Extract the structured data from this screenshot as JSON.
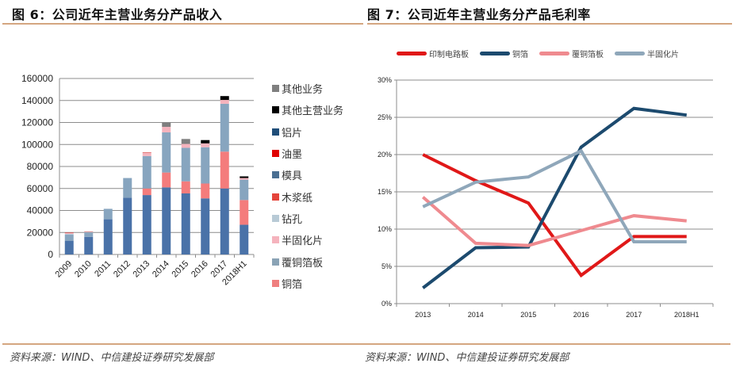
{
  "left": {
    "title": "图 6：公司近年主营业务分产品收入",
    "source": "资料来源：WIND、中信建投证券研究发展部"
  },
  "right": {
    "title": "图 7：公司近年主营业务分产品毛利率",
    "source": "资料来源：WIND、中信建投证券研究发展部"
  },
  "chart_data": [
    {
      "type": "bar",
      "stacked": true,
      "title": "公司近年主营业务分产品收入",
      "categories": [
        "2009",
        "2010",
        "2011",
        "2012",
        "2013",
        "2014",
        "2015",
        "2016",
        "2017",
        "2018H1"
      ],
      "ylim": [
        0,
        160000
      ],
      "yticks": [
        "0",
        "20000",
        "40000",
        "60000",
        "80000",
        "100000",
        "120000",
        "140000",
        "160000"
      ],
      "grid": true,
      "legend_position": "right",
      "legend": [
        "其他业务",
        "其他主营业务",
        "铝片",
        "油墨",
        "模具",
        "木浆纸",
        "钻孔",
        "半固化片",
        "覆铜箔板",
        "铜箔"
      ],
      "series": [
        {
          "name": "印制电路板",
          "color": "#4a72a8",
          "values": [
            12500,
            16000,
            32000,
            51500,
            54000,
            61000,
            55500,
            51000,
            60000,
            27000
          ]
        },
        {
          "name": "铜箔",
          "color": "#f47c7c",
          "values": [
            0,
            0,
            0,
            0,
            6000,
            13500,
            11000,
            13500,
            33500,
            22500
          ]
        },
        {
          "name": "覆铜箔板",
          "color": "#87a5bf",
          "values": [
            5500,
            4000,
            9500,
            18000,
            29500,
            36500,
            30500,
            33000,
            43500,
            18500
          ]
        },
        {
          "name": "钻孔",
          "color": "#b8cad6",
          "values": [
            700,
            500,
            0,
            0,
            0,
            0,
            0,
            0,
            0,
            0
          ]
        },
        {
          "name": "半固化片",
          "color": "#f5b3bd",
          "values": [
            800,
            300,
            0,
            0,
            3000,
            5000,
            3500,
            3500,
            3500,
            1500
          ]
        },
        {
          "name": "木浆纸",
          "color": "#d9534f",
          "values": [
            500,
            200,
            0,
            0,
            500,
            0,
            0,
            0,
            0,
            0
          ]
        },
        {
          "name": "其他主营业务",
          "color": "#000000",
          "values": [
            0,
            0,
            0,
            0,
            0,
            0,
            0,
            3000,
            3500,
            1500
          ]
        },
        {
          "name": "其他业务",
          "color": "#7f7f7f",
          "values": [
            0,
            0,
            0,
            0,
            0,
            4000,
            4500,
            0,
            0,
            0
          ]
        }
      ],
      "legend_colors": {
        "其他业务": "#7f7f7f",
        "其他主营业务": "#000000",
        "铝片": "#1f4e79",
        "油墨": "#e00000",
        "模具": "#4a6f92",
        "木浆纸": "#e4443b",
        "钻孔": "#b8cad6",
        "半固化片": "#f5b3bd",
        "覆铜箔板": "#8aa3b5",
        "铜箔": "#ef7f7f"
      }
    },
    {
      "type": "line",
      "title": "公司近年主营业务分产品毛利率",
      "categories": [
        "2013",
        "2014",
        "2015",
        "2016",
        "2017",
        "2018H1"
      ],
      "ylim": [
        0,
        0.3
      ],
      "yticks": [
        "0%",
        "5%",
        "10%",
        "15%",
        "20%",
        "25%",
        "30%"
      ],
      "grid": true,
      "legend_position": "top",
      "series": [
        {
          "name": "印制电路板",
          "color": "#e01818",
          "values": [
            0.2,
            0.165,
            0.135,
            0.038,
            0.09,
            0.09
          ]
        },
        {
          "name": "铜箔",
          "color": "#1c4a6e",
          "values": [
            0.021,
            0.075,
            0.076,
            0.21,
            0.262,
            0.253
          ]
        },
        {
          "name": "覆铜箔板",
          "color": "#ef8a8f",
          "values": [
            0.143,
            0.081,
            0.078,
            0.098,
            0.118,
            0.111
          ]
        },
        {
          "name": "半固化片",
          "color": "#8fa7ba",
          "values": [
            0.13,
            0.163,
            0.17,
            0.205,
            0.083,
            0.083
          ]
        }
      ]
    }
  ]
}
